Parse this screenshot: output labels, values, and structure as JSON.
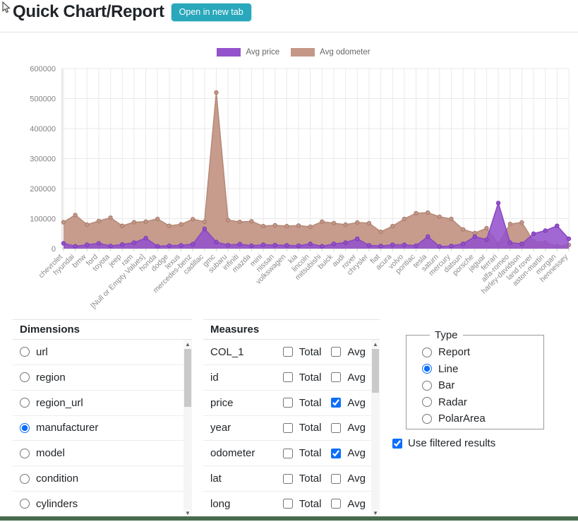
{
  "page": {
    "title": "Quick Chart/Report",
    "open_button_label": "Open in new tab"
  },
  "colors": {
    "accent_teal": "#29A7BB",
    "checkbox_blue": "#0D6EFD",
    "bottom_bar_green": "#486C4D",
    "price_purple": "#9452CC",
    "odometer_tan": "#C49787"
  },
  "chart_data": {
    "type": "area",
    "title": "",
    "xlabel": "",
    "ylabel": "",
    "ylim": [
      0,
      600000
    ],
    "yticks": [
      0,
      100000,
      200000,
      300000,
      400000,
      500000,
      600000
    ],
    "grid": true,
    "legend_position": "top",
    "categories": [
      "chevrolet",
      "hyundai",
      "bmw",
      "ford",
      "toyota",
      "jeep",
      "ram",
      "[Null or Empty Values]",
      "honda",
      "dodge",
      "lexus",
      "mercedes-benz",
      "cadillac",
      "gmc",
      "subaru",
      "infiniti",
      "mazda",
      "mini",
      "nissan",
      "volkswagen",
      "kia",
      "lincoln",
      "mitsubishi",
      "buick",
      "audi",
      "rover",
      "chrysler",
      "fiat",
      "acura",
      "volvo",
      "pontiac",
      "tesla",
      "saturn",
      "mercury",
      "datsun",
      "porsche",
      "jaguar",
      "ferrari",
      "alfa-romeo",
      "harley-davidson",
      "land rover",
      "aston-martin",
      "morgan",
      "hennessey"
    ],
    "series": [
      {
        "name": "Avg price",
        "color": "#9452CC",
        "line_color": "#8A48C4",
        "point_border": "#7C3DB5",
        "fill_opacity": 0.88,
        "values": [
          18000,
          8000,
          13000,
          18000,
          9000,
          14000,
          20000,
          35000,
          8000,
          10000,
          11000,
          15000,
          66000,
          22000,
          12000,
          15000,
          10000,
          13000,
          12000,
          11000,
          10000,
          16000,
          8000,
          16000,
          20000,
          33000,
          11000,
          9000,
          13000,
          13000,
          10000,
          40000,
          7000,
          9000,
          16000,
          40000,
          30000,
          152000,
          20000,
          16000,
          50000,
          60000,
          76000,
          33000
        ]
      },
      {
        "name": "Avg odometer",
        "color": "#C49787",
        "line_color": "#B78A78",
        "point_border": "#A87F6E",
        "fill_opacity": 0.95,
        "values": [
          88000,
          112000,
          80000,
          92000,
          103000,
          76000,
          88000,
          90000,
          99000,
          76000,
          81000,
          98000,
          90000,
          520000,
          95000,
          89000,
          91000,
          75000,
          78000,
          75000,
          77000,
          73000,
          90000,
          85000,
          80000,
          87000,
          85000,
          56000,
          75000,
          99000,
          118000,
          120000,
          106000,
          99000,
          64000,
          52000,
          68000,
          15000,
          82000,
          87000,
          25000,
          20000,
          8000,
          12000
        ]
      }
    ]
  },
  "dimensions": {
    "header": "Dimensions",
    "items": [
      {
        "label": "url",
        "selected": false
      },
      {
        "label": "region",
        "selected": false
      },
      {
        "label": "region_url",
        "selected": false
      },
      {
        "label": "manufacturer",
        "selected": true
      },
      {
        "label": "model",
        "selected": false
      },
      {
        "label": "condition",
        "selected": false
      },
      {
        "label": "cylinders",
        "selected": false
      }
    ]
  },
  "measures": {
    "header": "Measures",
    "total_label": "Total",
    "avg_label": "Avg",
    "rows": [
      {
        "name": "COL_1",
        "total": false,
        "avg": false
      },
      {
        "name": "id",
        "total": false,
        "avg": false
      },
      {
        "name": "price",
        "total": false,
        "avg": true
      },
      {
        "name": "year",
        "total": false,
        "avg": false
      },
      {
        "name": "odometer",
        "total": false,
        "avg": true
      },
      {
        "name": "lat",
        "total": false,
        "avg": false
      },
      {
        "name": "long",
        "total": false,
        "avg": false
      }
    ]
  },
  "type_panel": {
    "legend": "Type",
    "options": [
      {
        "label": "Report",
        "selected": false
      },
      {
        "label": "Line",
        "selected": true
      },
      {
        "label": "Bar",
        "selected": false
      },
      {
        "label": "Radar",
        "selected": false
      },
      {
        "label": "PolarArea",
        "selected": false
      }
    ]
  },
  "options": {
    "use_filtered_label": "Use filtered results",
    "use_filtered_checked": true
  }
}
